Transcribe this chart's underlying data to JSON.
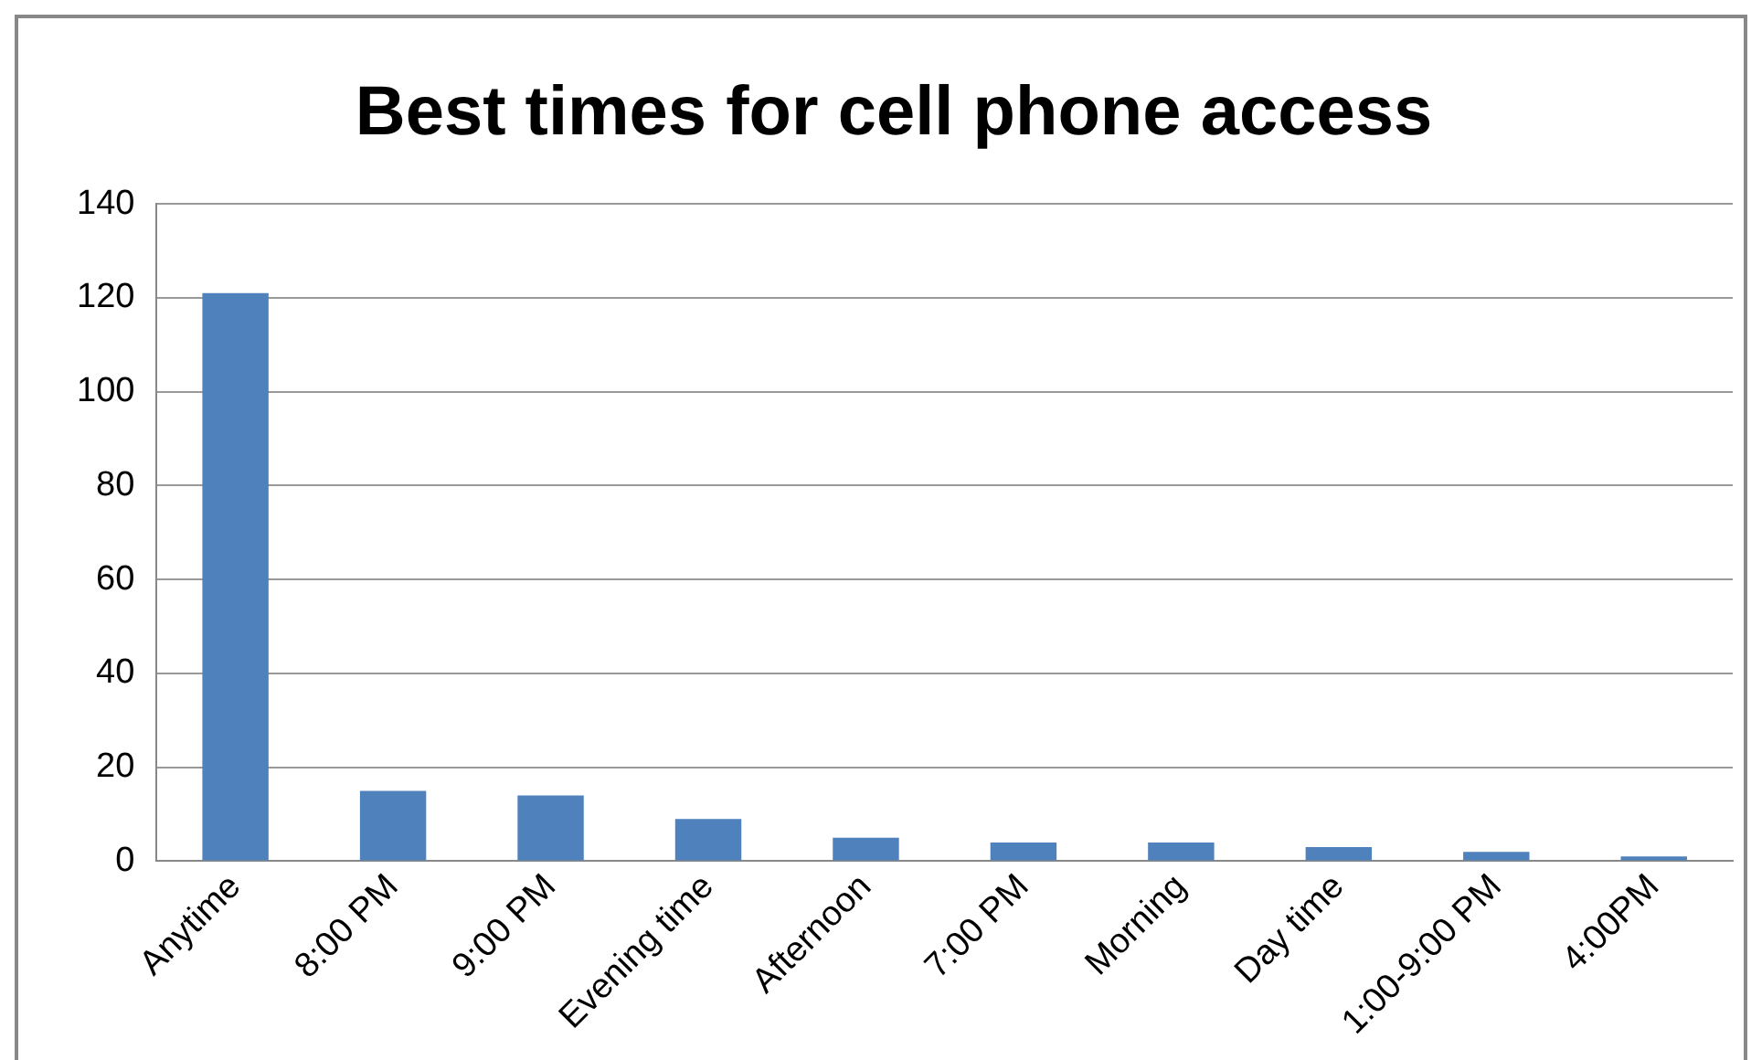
{
  "chart_data": {
    "type": "bar",
    "title": "Best times for cell phone access",
    "categories": [
      "Anytime",
      "8:00 PM",
      "9:00 PM",
      "Evening time",
      "Afternoon",
      "7:00 PM",
      "Morning",
      "Day time",
      "1:00-9:00 PM",
      "4:00PM"
    ],
    "values": [
      121,
      15,
      14,
      9,
      5,
      4,
      4,
      3,
      2,
      1
    ],
    "color": "#4f81bd",
    "ylim": [
      0,
      140
    ],
    "yticks": [
      0,
      20,
      40,
      60,
      80,
      100,
      120,
      140
    ],
    "grid": "y",
    "legend": false
  }
}
